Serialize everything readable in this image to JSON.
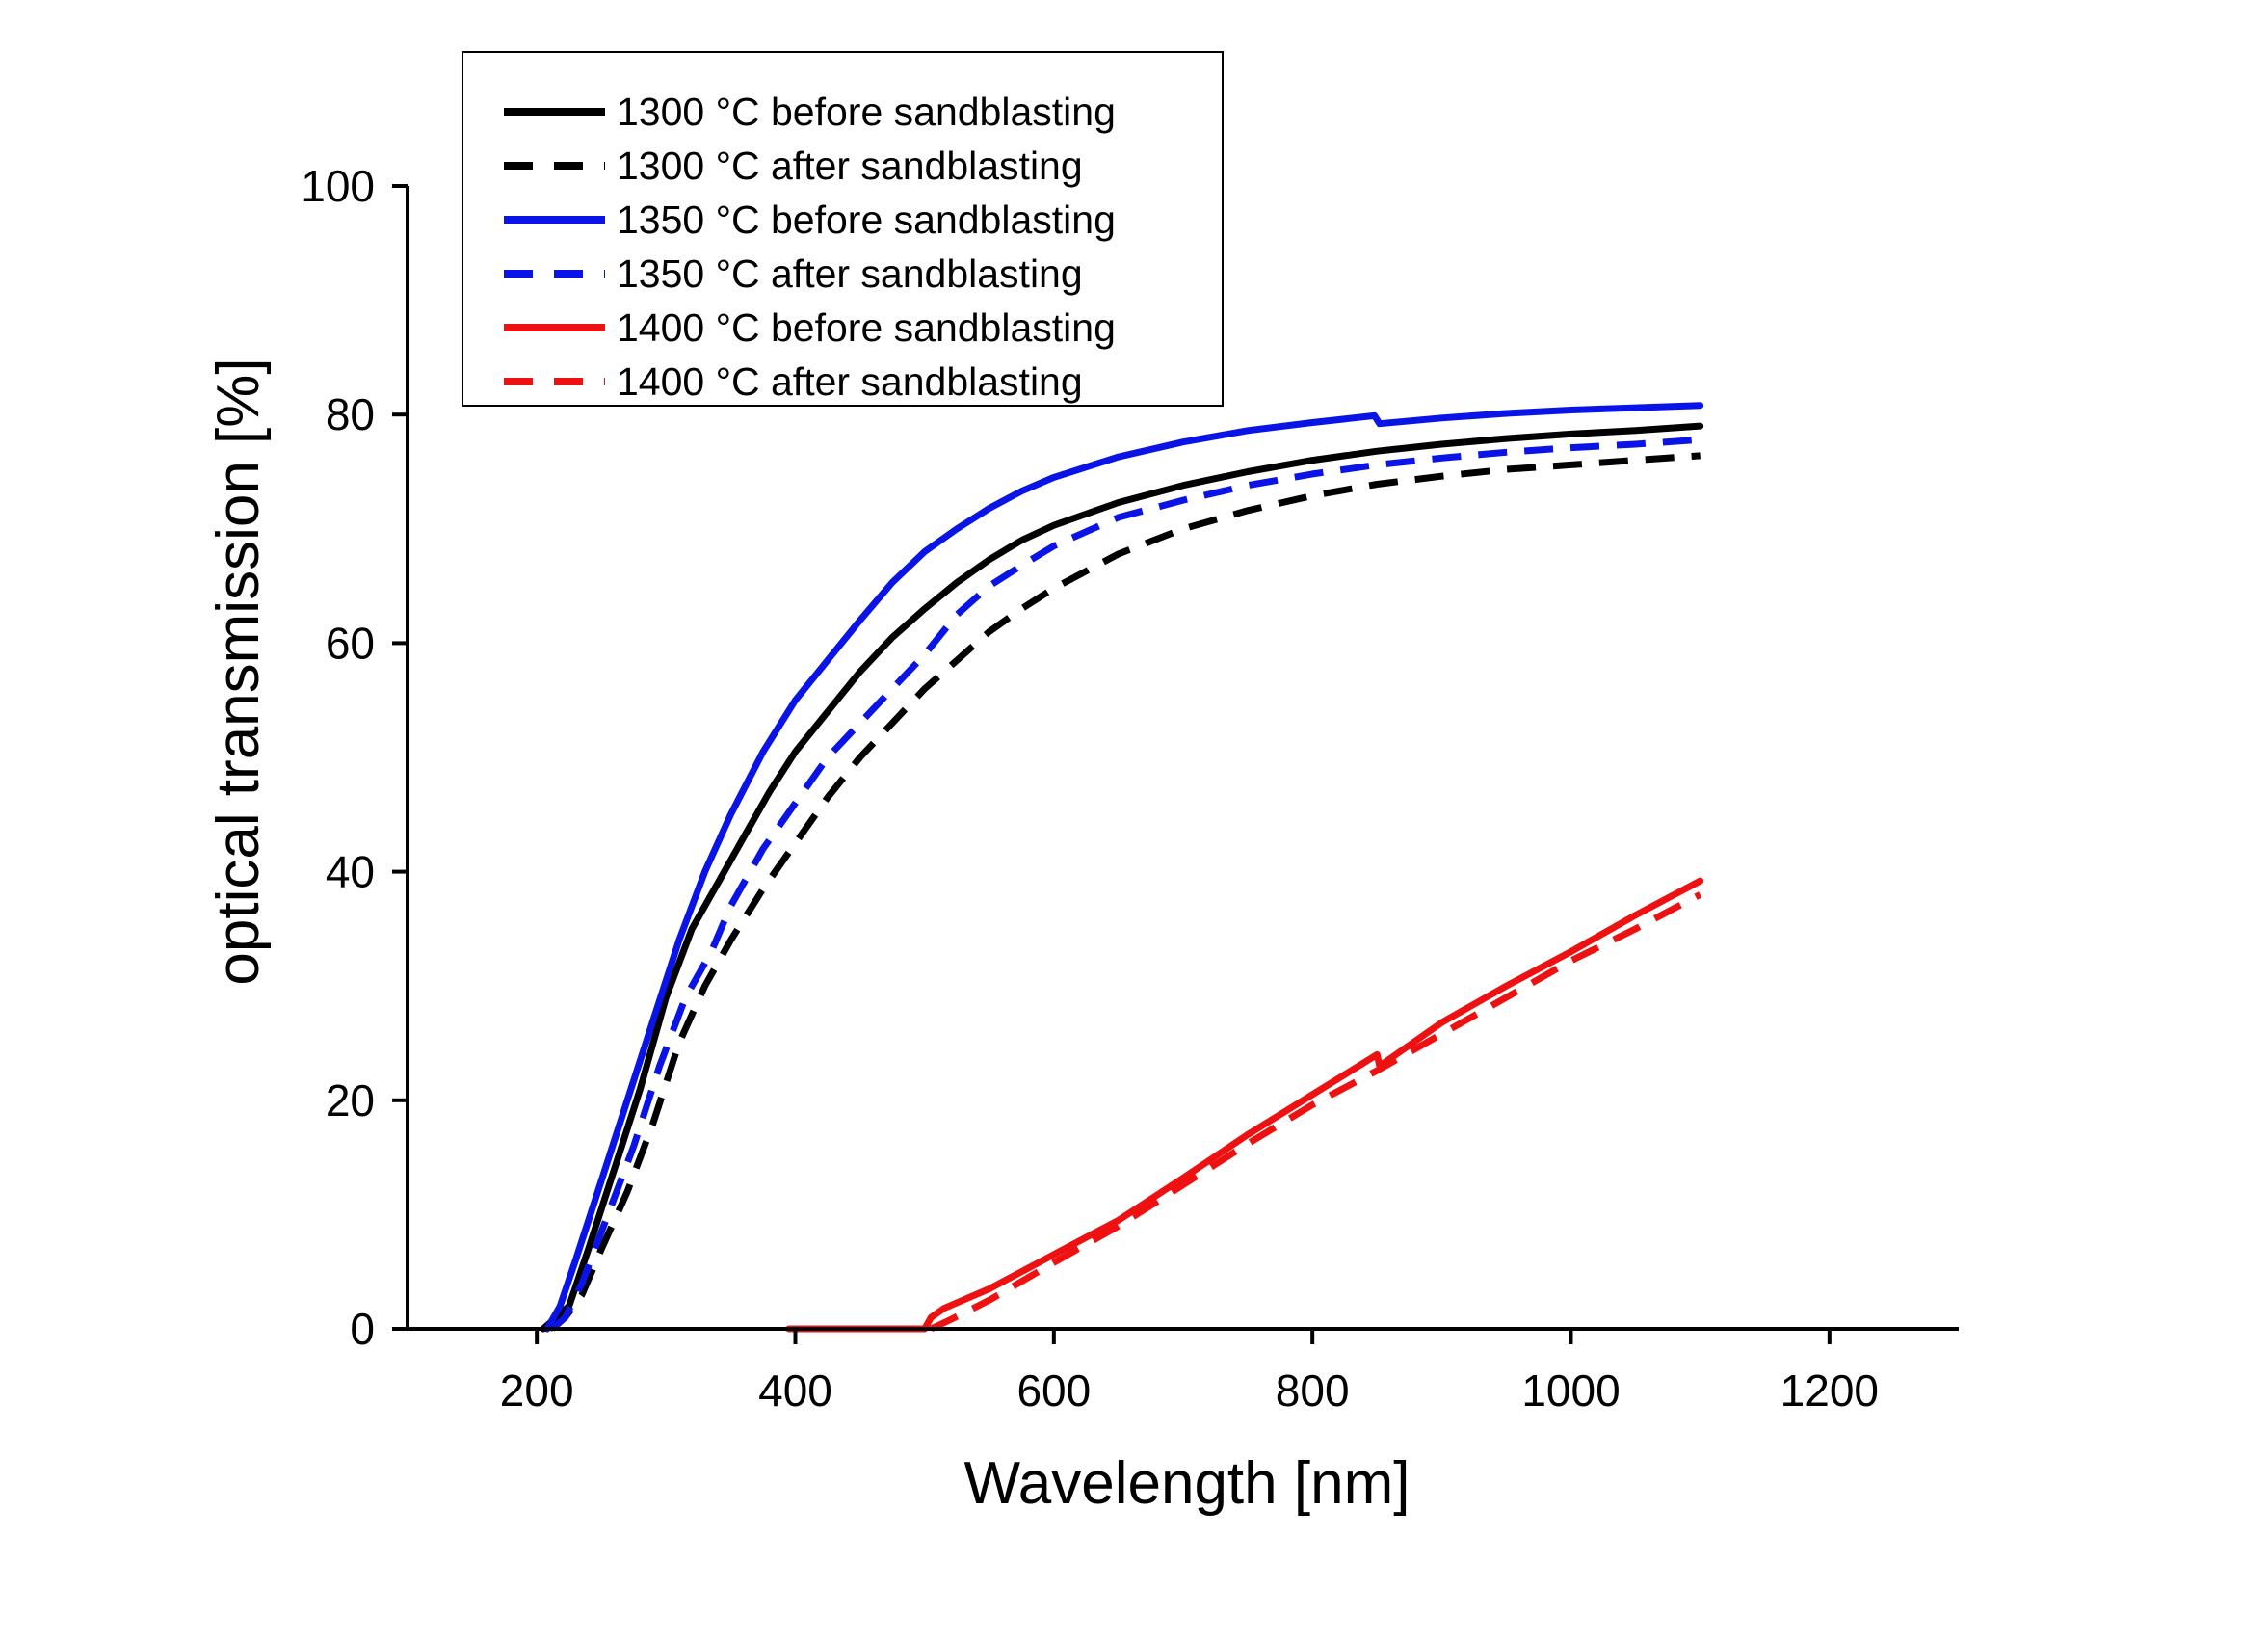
{
  "colors": {
    "black": "#000000",
    "blue": "#0a14e6",
    "red": "#ee1111",
    "background": "#ffffff"
  },
  "chart_data": {
    "type": "line",
    "title": "",
    "xlabel": "Wavelength [nm]",
    "ylabel": "optical transmission  [%]",
    "xlim": [
      100,
      1300
    ],
    "ylim": [
      0,
      100
    ],
    "x_ticks": [
      200,
      400,
      600,
      800,
      1000,
      1200
    ],
    "y_ticks": [
      0,
      20,
      40,
      60,
      80,
      100
    ],
    "x_tick_labels": [
      "200",
      "400",
      "600",
      "800",
      "1000",
      "1200"
    ],
    "y_tick_labels": [
      "0",
      "20",
      "40",
      "60",
      "80",
      "100"
    ],
    "grid": false,
    "legend_position": "top-left",
    "series": [
      {
        "name": "1300 °C before sandblasting",
        "color": "#000000",
        "dash": "solid",
        "points": [
          [
            205,
            0
          ],
          [
            215,
            1
          ],
          [
            225,
            2
          ],
          [
            240,
            7
          ],
          [
            260,
            14
          ],
          [
            280,
            21
          ],
          [
            300,
            29
          ],
          [
            320,
            35
          ],
          [
            340,
            39
          ],
          [
            360,
            43
          ],
          [
            380,
            47
          ],
          [
            400,
            50.5
          ],
          [
            425,
            54
          ],
          [
            450,
            57.5
          ],
          [
            475,
            60.5
          ],
          [
            500,
            63
          ],
          [
            525,
            65.3
          ],
          [
            550,
            67.3
          ],
          [
            575,
            69
          ],
          [
            600,
            70.3
          ],
          [
            650,
            72.3
          ],
          [
            700,
            73.8
          ],
          [
            750,
            75
          ],
          [
            800,
            76
          ],
          [
            850,
            76.8
          ],
          [
            900,
            77.4
          ],
          [
            950,
            77.9
          ],
          [
            1000,
            78.3
          ],
          [
            1050,
            78.6
          ],
          [
            1100,
            79
          ]
        ]
      },
      {
        "name": "1300 °C after sandblasting",
        "color": "#000000",
        "dash": "dashed",
        "points": [
          [
            210,
            0
          ],
          [
            222,
            1
          ],
          [
            235,
            3
          ],
          [
            250,
            7
          ],
          [
            270,
            12
          ],
          [
            290,
            18
          ],
          [
            310,
            25
          ],
          [
            330,
            30
          ],
          [
            350,
            34
          ],
          [
            375,
            38.5
          ],
          [
            400,
            42.5
          ],
          [
            425,
            46.5
          ],
          [
            450,
            50
          ],
          [
            475,
            53
          ],
          [
            500,
            56
          ],
          [
            525,
            58.5
          ],
          [
            550,
            61
          ],
          [
            575,
            63
          ],
          [
            600,
            64.8
          ],
          [
            650,
            67.8
          ],
          [
            700,
            70
          ],
          [
            750,
            71.6
          ],
          [
            800,
            72.9
          ],
          [
            850,
            73.9
          ],
          [
            900,
            74.6
          ],
          [
            950,
            75.2
          ],
          [
            1000,
            75.6
          ],
          [
            1050,
            76
          ],
          [
            1100,
            76.4
          ]
        ]
      },
      {
        "name": "1350 °C before sandblasting",
        "color": "#0a14e6",
        "dash": "solid",
        "points": [
          [
            208,
            0
          ],
          [
            218,
            2
          ],
          [
            230,
            6
          ],
          [
            250,
            13
          ],
          [
            270,
            20
          ],
          [
            290,
            27
          ],
          [
            310,
            34
          ],
          [
            330,
            40
          ],
          [
            350,
            45
          ],
          [
            375,
            50.5
          ],
          [
            400,
            55
          ],
          [
            425,
            58.5
          ],
          [
            450,
            62
          ],
          [
            475,
            65.3
          ],
          [
            500,
            68
          ],
          [
            525,
            70
          ],
          [
            550,
            71.8
          ],
          [
            575,
            73.3
          ],
          [
            600,
            74.5
          ],
          [
            650,
            76.3
          ],
          [
            700,
            77.6
          ],
          [
            750,
            78.6
          ],
          [
            800,
            79.3
          ],
          [
            848,
            79.9
          ],
          [
            852,
            79.2
          ],
          [
            900,
            79.7
          ],
          [
            950,
            80.1
          ],
          [
            1000,
            80.4
          ],
          [
            1050,
            80.6
          ],
          [
            1100,
            80.8
          ]
        ]
      },
      {
        "name": "1350 °C after sandblasting",
        "color": "#0a14e6",
        "dash": "dashed",
        "points": [
          [
            212,
            0
          ],
          [
            222,
            1
          ],
          [
            235,
            4
          ],
          [
            255,
            10
          ],
          [
            275,
            16
          ],
          [
            295,
            23
          ],
          [
            315,
            29
          ],
          [
            335,
            33
          ],
          [
            350,
            37
          ],
          [
            375,
            42
          ],
          [
            400,
            46
          ],
          [
            425,
            50
          ],
          [
            450,
            53
          ],
          [
            475,
            56
          ],
          [
            500,
            59
          ],
          [
            525,
            62.5
          ],
          [
            550,
            65
          ],
          [
            575,
            66.8
          ],
          [
            600,
            68.5
          ],
          [
            650,
            71
          ],
          [
            700,
            72.5
          ],
          [
            750,
            73.8
          ],
          [
            800,
            74.8
          ],
          [
            850,
            75.6
          ],
          [
            900,
            76.2
          ],
          [
            950,
            76.7
          ],
          [
            1000,
            77.1
          ],
          [
            1050,
            77.4
          ],
          [
            1100,
            77.8
          ]
        ]
      },
      {
        "name": "1400 °C before sandblasting",
        "color": "#ee1111",
        "dash": "solid",
        "points": [
          [
            395,
            0
          ],
          [
            500,
            0
          ],
          [
            505,
            1
          ],
          [
            515,
            1.8
          ],
          [
            550,
            3.5
          ],
          [
            600,
            6.5
          ],
          [
            650,
            9.5
          ],
          [
            700,
            13.2
          ],
          [
            750,
            17
          ],
          [
            800,
            20.5
          ],
          [
            850,
            24
          ],
          [
            852,
            23
          ],
          [
            900,
            26.8
          ],
          [
            950,
            30
          ],
          [
            1000,
            33
          ],
          [
            1050,
            36.2
          ],
          [
            1100,
            39.2
          ]
        ]
      },
      {
        "name": "1400 °C after sandblasting",
        "color": "#ee1111",
        "dash": "dashed",
        "points": [
          [
            505,
            0
          ],
          [
            520,
            0.8
          ],
          [
            550,
            2.5
          ],
          [
            600,
            5.8
          ],
          [
            650,
            9
          ],
          [
            700,
            12.6
          ],
          [
            750,
            16.2
          ],
          [
            800,
            19.6
          ],
          [
            850,
            22.6
          ],
          [
            900,
            25.8
          ],
          [
            950,
            29
          ],
          [
            1000,
            32.2
          ],
          [
            1050,
            35
          ],
          [
            1100,
            38
          ]
        ]
      }
    ]
  }
}
